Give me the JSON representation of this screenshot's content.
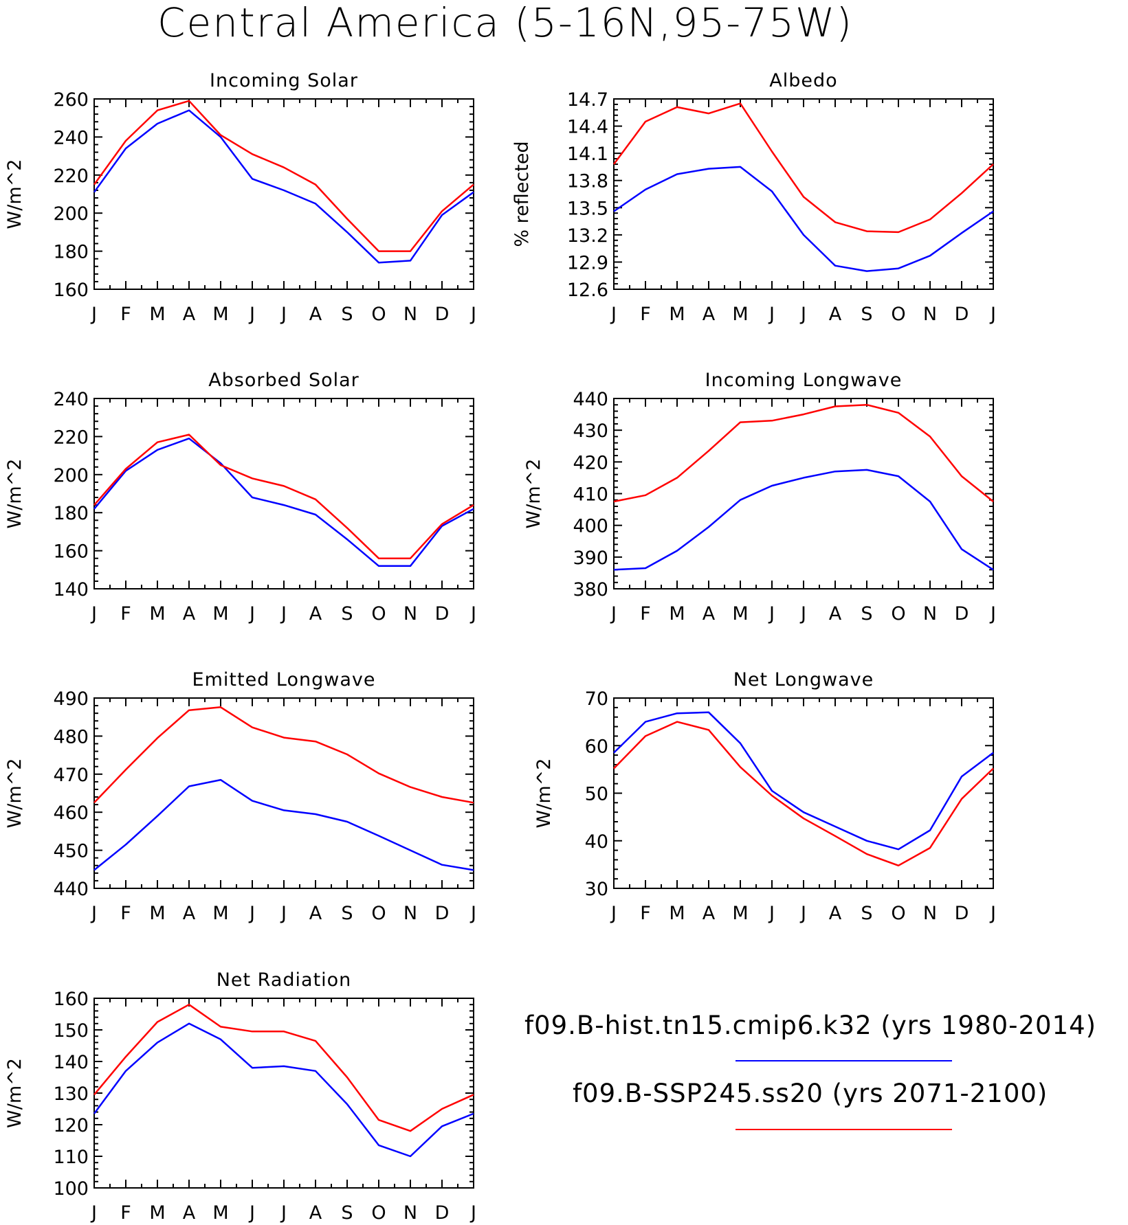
{
  "title": "Central America (5-16N,95-75W)",
  "legend": [
    {
      "label": "f09.B-hist.tn15.cmip6.k32 (yrs 1980-2014)",
      "color": "#0000ff"
    },
    {
      "label": "f09.B-SSP245.ss20 (yrs 2071-2100)",
      "color": "#ff0000"
    }
  ],
  "chart_data": [
    {
      "type": "line",
      "title": "Incoming Solar",
      "ylabel": "W/m^2",
      "categories": [
        "J",
        "F",
        "M",
        "A",
        "M",
        "J",
        "J",
        "A",
        "S",
        "O",
        "N",
        "D",
        "J"
      ],
      "ylim": [
        160,
        260
      ],
      "yticks": [
        160,
        180,
        200,
        220,
        240,
        260
      ],
      "series": [
        {
          "color": "#0000ff",
          "values": [
            211,
            234,
            247,
            254,
            240,
            218,
            212,
            205,
            190,
            174,
            175,
            199,
            211
          ]
        },
        {
          "color": "#ff0000",
          "values": [
            215,
            238,
            254,
            259,
            241,
            231,
            224,
            215,
            197,
            180,
            180,
            201,
            215
          ]
        }
      ]
    },
    {
      "type": "line",
      "title": "Albedo",
      "ylabel": "% reflected",
      "categories": [
        "J",
        "F",
        "M",
        "A",
        "M",
        "J",
        "J",
        "A",
        "S",
        "O",
        "N",
        "D",
        "J"
      ],
      "ylim": [
        12.6,
        14.7
      ],
      "yticks": [
        12.6,
        12.9,
        13.2,
        13.5,
        13.8,
        14.1,
        14.4,
        14.7
      ],
      "series": [
        {
          "color": "#0000ff",
          "values": [
            13.46,
            13.7,
            13.87,
            13.93,
            13.95,
            13.68,
            13.2,
            12.86,
            12.8,
            12.83,
            12.97,
            13.22,
            13.46
          ]
        },
        {
          "color": "#ff0000",
          "values": [
            13.98,
            14.45,
            14.61,
            14.54,
            14.65,
            14.12,
            13.62,
            13.34,
            13.24,
            13.23,
            13.37,
            13.66,
            13.98
          ]
        }
      ]
    },
    {
      "type": "line",
      "title": "Absorbed Solar",
      "ylabel": "W/m^2",
      "categories": [
        "J",
        "F",
        "M",
        "A",
        "M",
        "J",
        "J",
        "A",
        "S",
        "O",
        "N",
        "D",
        "J"
      ],
      "ylim": [
        140,
        240
      ],
      "yticks": [
        140,
        160,
        180,
        200,
        220,
        240
      ],
      "series": [
        {
          "color": "#0000ff",
          "values": [
            182,
            202,
            213,
            219,
            206,
            188,
            184,
            179,
            166,
            152,
            152,
            173,
            182
          ]
        },
        {
          "color": "#ff0000",
          "values": [
            184,
            203,
            217,
            221,
            205,
            198,
            194,
            187,
            172,
            156,
            156,
            174,
            184
          ]
        }
      ]
    },
    {
      "type": "line",
      "title": "Incoming Longwave",
      "ylabel": "W/m^2",
      "categories": [
        "J",
        "F",
        "M",
        "A",
        "M",
        "J",
        "J",
        "A",
        "S",
        "O",
        "N",
        "D",
        "J"
      ],
      "ylim": [
        380,
        440
      ],
      "yticks": [
        380,
        390,
        400,
        410,
        420,
        430,
        440
      ],
      "series": [
        {
          "color": "#0000ff",
          "values": [
            386,
            386.5,
            392,
            399.5,
            408,
            412.5,
            415,
            417,
            417.5,
            415.5,
            407.5,
            392.5,
            386
          ]
        },
        {
          "color": "#ff0000",
          "values": [
            407.5,
            409.5,
            415,
            423.5,
            432.5,
            433,
            435,
            437.5,
            438,
            435.5,
            428,
            415.5,
            407.5
          ]
        }
      ]
    },
    {
      "type": "line",
      "title": "Emitted Longwave",
      "ylabel": "W/m^2",
      "categories": [
        "J",
        "F",
        "M",
        "A",
        "M",
        "J",
        "J",
        "A",
        "S",
        "O",
        "N",
        "D",
        "J"
      ],
      "ylim": [
        440,
        490
      ],
      "yticks": [
        440,
        450,
        460,
        470,
        480,
        490
      ],
      "series": [
        {
          "color": "#0000ff",
          "values": [
            444.8,
            451.5,
            459,
            466.8,
            468.5,
            463,
            460.5,
            459.5,
            457.5,
            453.8,
            450,
            446.2,
            444.8
          ]
        },
        {
          "color": "#ff0000",
          "values": [
            462.5,
            471.2,
            479.5,
            486.8,
            487.6,
            482.3,
            479.6,
            478.6,
            475.2,
            470.2,
            466.6,
            464,
            462.5
          ]
        }
      ]
    },
    {
      "type": "line",
      "title": "Net Longwave",
      "ylabel": "W/m^2",
      "categories": [
        "J",
        "F",
        "M",
        "A",
        "M",
        "J",
        "J",
        "A",
        "S",
        "O",
        "N",
        "D",
        "J"
      ],
      "ylim": [
        30,
        70
      ],
      "yticks": [
        30,
        40,
        50,
        60,
        70
      ],
      "series": [
        {
          "color": "#0000ff",
          "values": [
            58.5,
            65,
            66.8,
            67,
            60.5,
            50.5,
            46,
            43,
            40,
            38.2,
            42.2,
            53.5,
            58.5
          ]
        },
        {
          "color": "#ff0000",
          "values": [
            55.2,
            62,
            65,
            63.3,
            55.5,
            49.5,
            44.7,
            41,
            37.2,
            34.8,
            38.5,
            48.8,
            55.2
          ]
        }
      ]
    },
    {
      "type": "line",
      "title": "Net Radiation",
      "ylabel": "W/m^2",
      "categories": [
        "J",
        "F",
        "M",
        "A",
        "M",
        "J",
        "J",
        "A",
        "S",
        "O",
        "N",
        "D",
        "J"
      ],
      "ylim": [
        100,
        160
      ],
      "yticks": [
        100,
        110,
        120,
        130,
        140,
        150,
        160
      ],
      "series": [
        {
          "color": "#0000ff",
          "values": [
            123.5,
            137,
            146,
            152,
            147,
            138,
            138.5,
            137,
            126.5,
            113.5,
            110,
            119.5,
            123.5
          ]
        },
        {
          "color": "#ff0000",
          "values": [
            129.5,
            141.5,
            152.5,
            158,
            151,
            149.5,
            149.5,
            146.5,
            135,
            121.5,
            118,
            125,
            129.5
          ]
        }
      ]
    }
  ]
}
